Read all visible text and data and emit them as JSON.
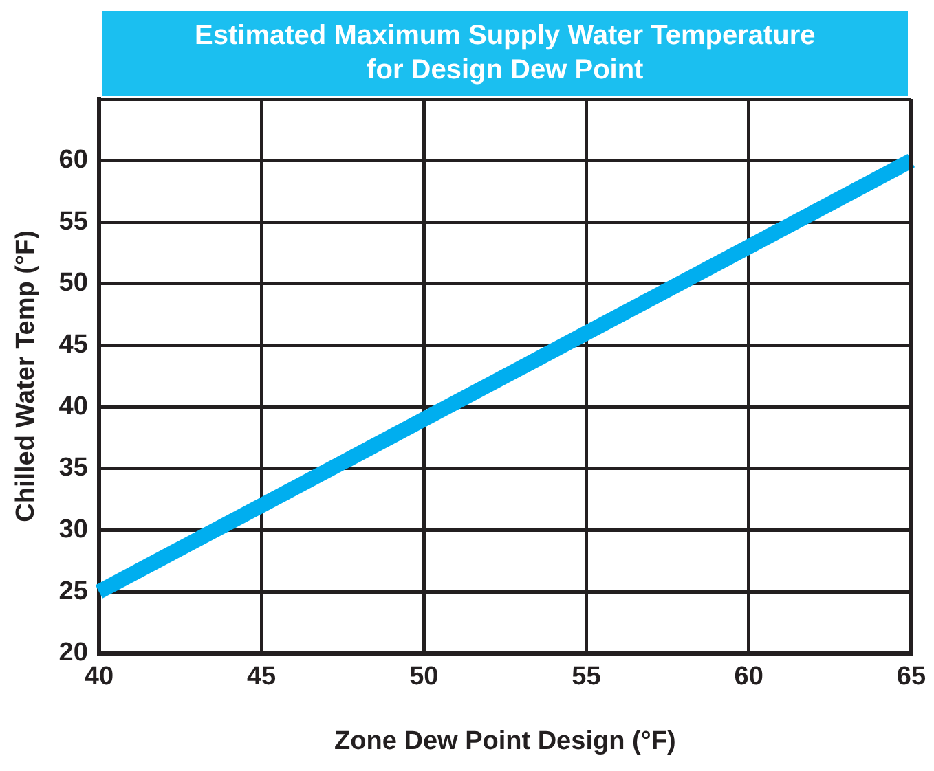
{
  "chart_data": {
    "type": "line",
    "title": "Estimated Maximum Supply Water Temperature\nfor Design Dew Point",
    "xlabel": "Zone Dew Point Design (°F)",
    "ylabel": "Chilled Water Temp (°F)",
    "x": [
      40,
      65
    ],
    "series": [
      {
        "color": "#00aeef",
        "values": [
          25,
          60
        ]
      }
    ],
    "xlim": [
      40,
      65
    ],
    "xticks": [
      40,
      45,
      50,
      55,
      60,
      65
    ],
    "ylim": [
      20,
      65
    ],
    "yticks": [
      20,
      25,
      30,
      35,
      40,
      45,
      50,
      55,
      60,
      {
        "value": 65,
        "label": null
      }
    ],
    "grid": true,
    "legend": false,
    "marker": "none",
    "line_style": "solid"
  }
}
